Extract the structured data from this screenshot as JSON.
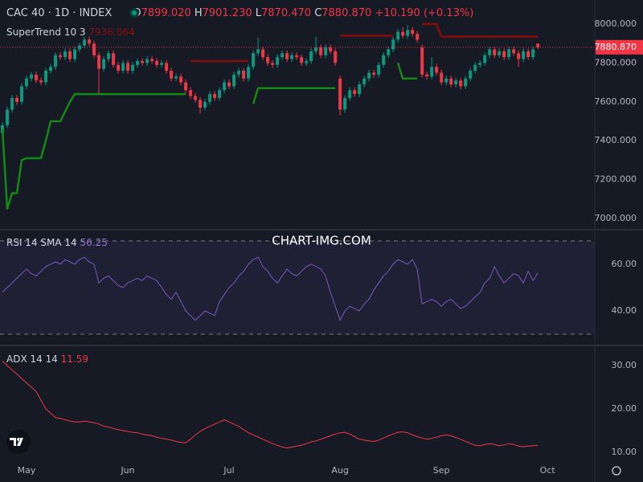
{
  "chart_data": [
    {
      "type": "candlestick",
      "title": "CAC 40 · 1D · INDEX",
      "ohlc": [
        [
          "O",
          "7899.020"
        ],
        [
          "H",
          "7901.230"
        ],
        [
          "L",
          "7870.470"
        ],
        [
          "C",
          "7880.870"
        ]
      ],
      "change": "+10.190 (+0.13%)",
      "last_price_label": "7880.870",
      "watermark": "CHART-IMG.COM",
      "up_color": "#089981",
      "down_color": "#f23645",
      "open": [
        7440,
        7480,
        7560,
        7620,
        7600,
        7680,
        7720,
        7740,
        7710,
        7700,
        7760,
        7780,
        7840,
        7830,
        7860,
        7820,
        7870,
        7890,
        7920,
        7900,
        7840,
        7770,
        7820,
        7850,
        7790,
        7760,
        7800,
        7760,
        7790,
        7810,
        7800,
        7820,
        7810,
        7790,
        7800,
        7760,
        7720,
        7730,
        7700,
        7660,
        7630,
        7610,
        7570,
        7600,
        7640,
        7620,
        7660,
        7700,
        7680,
        7740,
        7760,
        7720,
        7780,
        7850,
        7870,
        7830,
        7800,
        7790,
        7830,
        7850,
        7820,
        7840,
        7830,
        7800,
        7810,
        7860,
        7880,
        7840,
        7880,
        7860,
        7720,
        7560,
        7620,
        7660,
        7640,
        7690,
        7720,
        7750,
        7740,
        7790,
        7840,
        7870,
        7920,
        7960,
        7940,
        7970,
        7950,
        7880,
        7740,
        7730,
        7780,
        7750,
        7700,
        7720,
        7690,
        7710,
        7680,
        7720,
        7760,
        7790,
        7800,
        7840,
        7870,
        7840,
        7860,
        7830,
        7870,
        7850,
        7820,
        7860,
        7830,
        7899.02
      ],
      "high": [
        7495,
        7575,
        7635,
        7635,
        7695,
        7735,
        7755,
        7755,
        7725,
        7775,
        7795,
        7855,
        7855,
        7875,
        7875,
        7885,
        7905,
        7935,
        7935,
        7915,
        7855,
        7835,
        7865,
        7865,
        7805,
        7815,
        7815,
        7805,
        7825,
        7825,
        7835,
        7835,
        7825,
        7815,
        7815,
        7775,
        7745,
        7745,
        7715,
        7675,
        7645,
        7625,
        7615,
        7655,
        7655,
        7675,
        7715,
        7715,
        7755,
        7775,
        7775,
        7795,
        7865,
        7930,
        7885,
        7845,
        7815,
        7845,
        7865,
        7865,
        7855,
        7855,
        7845,
        7825,
        7875,
        7935,
        7895,
        7895,
        7895,
        7875,
        7735,
        7635,
        7675,
        7675,
        7705,
        7735,
        7765,
        7765,
        7805,
        7855,
        7885,
        7935,
        7975,
        7985,
        7995,
        7985,
        7965,
        7895,
        7755,
        7830,
        7795,
        7765,
        7735,
        7735,
        7725,
        7725,
        7735,
        7775,
        7805,
        7815,
        7855,
        7885,
        7885,
        7875,
        7875,
        7885,
        7885,
        7865,
        7875,
        7875,
        7885,
        7901.23
      ],
      "low": [
        7425,
        7465,
        7545,
        7585,
        7585,
        7665,
        7705,
        7695,
        7685,
        7685,
        7745,
        7765,
        7815,
        7815,
        7805,
        7805,
        7855,
        7875,
        7885,
        7825,
        7640,
        7755,
        7805,
        7775,
        7745,
        7745,
        7745,
        7745,
        7775,
        7785,
        7785,
        7795,
        7775,
        7775,
        7745,
        7705,
        7705,
        7685,
        7645,
        7615,
        7595,
        7540,
        7555,
        7585,
        7605,
        7605,
        7645,
        7665,
        7665,
        7725,
        7705,
        7705,
        7765,
        7835,
        7815,
        7785,
        7775,
        7775,
        7815,
        7805,
        7805,
        7815,
        7785,
        7785,
        7795,
        7845,
        7825,
        7825,
        7845,
        7785,
        7530,
        7545,
        7605,
        7625,
        7625,
        7675,
        7705,
        7725,
        7725,
        7775,
        7825,
        7855,
        7905,
        7925,
        7925,
        7935,
        7905,
        7725,
        7715,
        7715,
        7735,
        7685,
        7685,
        7675,
        7675,
        7665,
        7665,
        7705,
        7745,
        7775,
        7785,
        7825,
        7825,
        7825,
        7815,
        7815,
        7835,
        7780,
        7805,
        7815,
        7815,
        7870.47
      ],
      "close": [
        7480,
        7560,
        7620,
        7600,
        7680,
        7720,
        7740,
        7710,
        7700,
        7760,
        7780,
        7840,
        7830,
        7860,
        7820,
        7870,
        7890,
        7920,
        7900,
        7840,
        7770,
        7820,
        7850,
        7790,
        7760,
        7800,
        7760,
        7790,
        7810,
        7800,
        7820,
        7810,
        7790,
        7800,
        7760,
        7720,
        7730,
        7700,
        7660,
        7630,
        7610,
        7570,
        7600,
        7640,
        7620,
        7660,
        7700,
        7680,
        7740,
        7760,
        7720,
        7780,
        7850,
        7870,
        7830,
        7800,
        7790,
        7830,
        7850,
        7820,
        7840,
        7830,
        7800,
        7810,
        7860,
        7880,
        7840,
        7880,
        7860,
        7800,
        7560,
        7620,
        7660,
        7640,
        7690,
        7720,
        7750,
        7740,
        7790,
        7840,
        7870,
        7920,
        7960,
        7940,
        7970,
        7950,
        7920,
        7740,
        7730,
        7780,
        7750,
        7700,
        7720,
        7690,
        7710,
        7680,
        7720,
        7760,
        7790,
        7800,
        7840,
        7870,
        7840,
        7860,
        7830,
        7870,
        7850,
        7820,
        7860,
        7830,
        7870,
        7880.87
      ],
      "supertrend": {
        "name": "SuperTrend 10 3",
        "value_label": "7936.064",
        "up_color": "#138a13",
        "down_color": "#8b0b0b",
        "up": [
          7460,
          7050,
          7130,
          7130,
          7300,
          7310,
          7310,
          7310,
          7310,
          7400,
          7500,
          7500,
          7500,
          7550,
          7600,
          7640,
          7640,
          7640,
          7640,
          7640,
          7640,
          7640,
          7640,
          7640,
          7640,
          7640,
          7640,
          7640,
          7640,
          7640,
          7640,
          7640,
          7640,
          7640,
          7640,
          7640,
          7640,
          7640,
          7640,
          null,
          null,
          null,
          null,
          null,
          null,
          null,
          null,
          null,
          null,
          null,
          null,
          null,
          7590,
          7670,
          7670,
          7670,
          7670,
          7670,
          7670,
          7670,
          7670,
          7670,
          7670,
          7670,
          7670,
          7670,
          7670,
          7670,
          7670,
          7670,
          null,
          null,
          null,
          null,
          null,
          null,
          null,
          null,
          null,
          null,
          null,
          null,
          7800,
          7720,
          7720,
          7720,
          7720,
          null,
          null,
          null,
          null,
          null,
          null,
          null,
          null,
          null,
          null,
          null,
          null,
          null,
          null,
          null,
          null,
          null,
          null,
          null,
          null,
          null,
          null,
          null,
          null,
          null
        ],
        "down": [
          null,
          null,
          null,
          null,
          null,
          null,
          null,
          null,
          null,
          null,
          null,
          null,
          null,
          null,
          null,
          null,
          null,
          null,
          null,
          null,
          null,
          null,
          null,
          null,
          null,
          null,
          null,
          null,
          null,
          null,
          null,
          null,
          null,
          null,
          null,
          null,
          null,
          null,
          null,
          7810,
          7810,
          7810,
          7810,
          7810,
          7810,
          7810,
          7810,
          7810,
          7810,
          7810,
          7810,
          7810,
          null,
          null,
          null,
          null,
          null,
          null,
          null,
          null,
          null,
          null,
          null,
          null,
          null,
          null,
          null,
          null,
          null,
          null,
          7940,
          7940,
          7940,
          7940,
          7940,
          7940,
          7940,
          7940,
          7940,
          7940,
          7940,
          7940,
          null,
          null,
          null,
          null,
          null,
          8000,
          8000,
          8000,
          8000,
          7936.064,
          7936.064,
          7936.064,
          7936.064,
          7936.064,
          7936.064,
          7936.064,
          7936.064,
          7936.064,
          7936.064,
          7936.064,
          7936.064,
          7936.064,
          7936.064,
          7936.064,
          7936.064,
          7936.064,
          7936.064,
          7936.064,
          7936.064,
          7936.064
        ]
      },
      "xlim": [
        -0.5,
        122.8
      ],
      "xticks": [
        {
          "value": 5,
          "label": "May"
        },
        {
          "value": 26,
          "label": "Jun"
        },
        {
          "value": 47,
          "label": "Jul"
        },
        {
          "value": 70,
          "label": "Aug"
        },
        {
          "value": 91,
          "label": "Sep"
        },
        {
          "value": 113,
          "label": "Oct"
        }
      ],
      "ylim": [
        6946,
        8124
      ],
      "yticks": [
        {
          "value": 7000,
          "label": "7000.000"
        },
        {
          "value": 7200,
          "label": "7200.000"
        },
        {
          "value": 7400,
          "label": "7400.000"
        },
        {
          "value": 7600,
          "label": "7600.000"
        },
        {
          "value": 7800,
          "label": "7800.000"
        },
        {
          "value": 8000,
          "label": "8000.000"
        }
      ]
    },
    {
      "type": "line",
      "title": "RSI 14 SMA 14",
      "value_label": "56.25",
      "color": "#7e57c2",
      "values": [
        48,
        50,
        52,
        54,
        56,
        58,
        56,
        55,
        57,
        59,
        60,
        61,
        60,
        62,
        61,
        60,
        62,
        63,
        61,
        60,
        52,
        54,
        55,
        53,
        51,
        50,
        52,
        53,
        54,
        53,
        55,
        54,
        53,
        50,
        47,
        45,
        48,
        44,
        40,
        38,
        36,
        38,
        40,
        39,
        38,
        44,
        47,
        50,
        52,
        55,
        57,
        60,
        62,
        63,
        59,
        57,
        54,
        52,
        55,
        58,
        56,
        55,
        57,
        59,
        60,
        59,
        58,
        55,
        48,
        42,
        36,
        40,
        42,
        41,
        40,
        43,
        45,
        49,
        52,
        55,
        57,
        60,
        62,
        61,
        60,
        62,
        58,
        43,
        44,
        45,
        44,
        42,
        44,
        45,
        43,
        41,
        42,
        44,
        46,
        48,
        52,
        54,
        59,
        55,
        52,
        54,
        56,
        55,
        52,
        57,
        53,
        56.25
      ],
      "bands": [
        70,
        30
      ],
      "ylim": [
        25.2,
        74.1
      ],
      "yticks": [
        {
          "value": 40,
          "label": "40.00"
        },
        {
          "value": 60,
          "label": "60.00"
        }
      ]
    },
    {
      "type": "line",
      "title": "ADX 14 14",
      "value_label": "11.59",
      "color": "#f23645",
      "values": [
        31,
        30,
        29,
        28,
        27,
        26,
        25,
        24,
        22,
        20,
        19,
        18,
        17.8,
        17.5,
        17.2,
        17,
        17,
        17.2,
        17,
        16.8,
        16.5,
        16,
        15.8,
        15.5,
        15.2,
        15,
        14.8,
        14.6,
        14.5,
        14.2,
        14,
        13.8,
        13.5,
        13.2,
        13,
        12.8,
        12.5,
        12.3,
        12.2,
        13,
        14,
        14.8,
        15.5,
        16,
        16.5,
        17,
        17.5,
        17,
        16.5,
        16,
        15.2,
        14.5,
        14,
        13.5,
        13,
        12.5,
        12,
        11.6,
        11.2,
        11,
        11.2,
        11.4,
        11.6,
        12,
        12.4,
        12.6,
        13,
        13.4,
        13.8,
        14.2,
        14.5,
        14.6,
        14.2,
        13.6,
        13,
        12.8,
        12.6,
        12.5,
        12.8,
        13.3,
        13.8,
        14.2,
        14.6,
        14.7,
        14.5,
        14,
        13.6,
        13.3,
        13,
        13.2,
        13.5,
        13.8,
        14,
        13.8,
        13.4,
        13,
        12.5,
        12,
        11.6,
        11.5,
        11.8,
        12,
        11.8,
        11.5,
        11.7,
        12,
        11.8,
        11.4,
        11.3,
        11.4,
        11.5,
        11.59
      ],
      "ylim": [
        8.7,
        34.63
      ],
      "yticks": [
        {
          "value": 10,
          "label": "10.00"
        },
        {
          "value": 20,
          "label": "20.00"
        },
        {
          "value": 30,
          "label": "30.00"
        }
      ]
    }
  ]
}
